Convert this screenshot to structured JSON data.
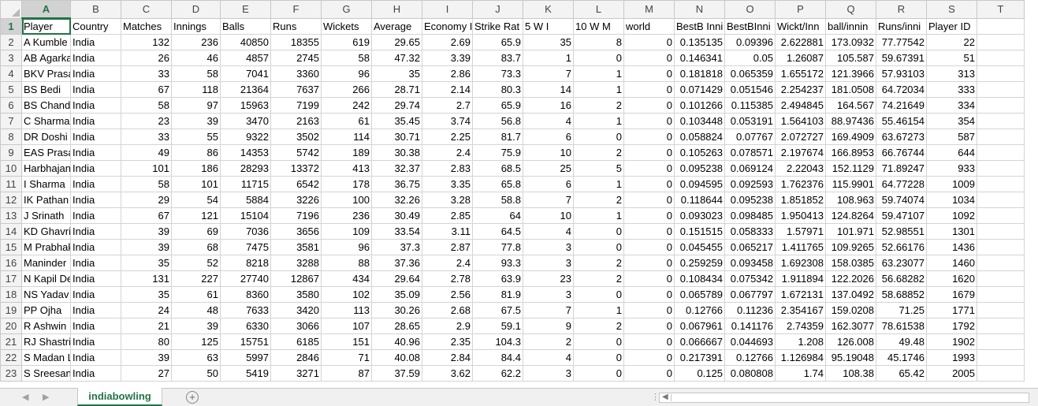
{
  "columns": [
    "A",
    "B",
    "C",
    "D",
    "E",
    "F",
    "G",
    "H",
    "I",
    "J",
    "K",
    "L",
    "M",
    "N",
    "O",
    "P",
    "Q",
    "R",
    "S",
    "T"
  ],
  "column_kinds": [
    "txt",
    "txt",
    "num",
    "num",
    "num",
    "num",
    "num",
    "num",
    "num",
    "num",
    "num",
    "num",
    "num",
    "num",
    "num",
    "num",
    "num",
    "num",
    "num",
    "txt"
  ],
  "header": [
    "Player",
    "Country",
    "Matches",
    "Innings",
    "Balls",
    "Runs",
    "Wickets",
    "Average",
    "Economy I",
    "Strike Rat",
    "5 W I",
    "10 W M",
    "world",
    "BestB Inni",
    "BestBInni",
    "Wickt/Inn",
    "ball/innin",
    "Runs/inni",
    "Player ID",
    ""
  ],
  "rows": [
    [
      "A Kumble",
      "India",
      "132",
      "236",
      "40850",
      "18355",
      "619",
      "29.65",
      "2.69",
      "65.9",
      "35",
      "8",
      "0",
      "0.135135",
      "0.09396",
      "2.622881",
      "173.0932",
      "77.77542",
      "22",
      ""
    ],
    [
      "AB Agarka",
      "India",
      "26",
      "46",
      "4857",
      "2745",
      "58",
      "47.32",
      "3.39",
      "83.7",
      "1",
      "0",
      "0",
      "0.146341",
      "0.05",
      "1.26087",
      "105.587",
      "59.67391",
      "51",
      ""
    ],
    [
      "BKV Prasa",
      "India",
      "33",
      "58",
      "7041",
      "3360",
      "96",
      "35",
      "2.86",
      "73.3",
      "7",
      "1",
      "0",
      "0.181818",
      "0.065359",
      "1.655172",
      "121.3966",
      "57.93103",
      "313",
      ""
    ],
    [
      "BS Bedi",
      "India",
      "67",
      "118",
      "21364",
      "7637",
      "266",
      "28.71",
      "2.14",
      "80.3",
      "14",
      "1",
      "0",
      "0.071429",
      "0.051546",
      "2.254237",
      "181.0508",
      "64.72034",
      "333",
      ""
    ],
    [
      "BS Chandr",
      "India",
      "58",
      "97",
      "15963",
      "7199",
      "242",
      "29.74",
      "2.7",
      "65.9",
      "16",
      "2",
      "0",
      "0.101266",
      "0.115385",
      "2.494845",
      "164.567",
      "74.21649",
      "334",
      ""
    ],
    [
      "C Sharma",
      "India",
      "23",
      "39",
      "3470",
      "2163",
      "61",
      "35.45",
      "3.74",
      "56.8",
      "4",
      "1",
      "0",
      "0.103448",
      "0.053191",
      "1.564103",
      "88.97436",
      "55.46154",
      "354",
      ""
    ],
    [
      "DR Doshi",
      "India",
      "33",
      "55",
      "9322",
      "3502",
      "114",
      "30.71",
      "2.25",
      "81.7",
      "6",
      "0",
      "0",
      "0.058824",
      "0.07767",
      "2.072727",
      "169.4909",
      "63.67273",
      "587",
      ""
    ],
    [
      "EAS Prasa",
      "India",
      "49",
      "86",
      "14353",
      "5742",
      "189",
      "30.38",
      "2.4",
      "75.9",
      "10",
      "2",
      "0",
      "0.105263",
      "0.078571",
      "2.197674",
      "166.8953",
      "66.76744",
      "644",
      ""
    ],
    [
      "Harbhajan",
      "India",
      "101",
      "186",
      "28293",
      "13372",
      "413",
      "32.37",
      "2.83",
      "68.5",
      "25",
      "5",
      "0",
      "0.095238",
      "0.069124",
      "2.22043",
      "152.1129",
      "71.89247",
      "933",
      ""
    ],
    [
      "I Sharma",
      "India",
      "58",
      "101",
      "11715",
      "6542",
      "178",
      "36.75",
      "3.35",
      "65.8",
      "6",
      "1",
      "0",
      "0.094595",
      "0.092593",
      "1.762376",
      "115.9901",
      "64.77228",
      "1009",
      ""
    ],
    [
      "IK Pathan",
      "India",
      "29",
      "54",
      "5884",
      "3226",
      "100",
      "32.26",
      "3.28",
      "58.8",
      "7",
      "2",
      "0",
      "0.118644",
      "0.095238",
      "1.851852",
      "108.963",
      "59.74074",
      "1034",
      ""
    ],
    [
      "J Srinath",
      "India",
      "67",
      "121",
      "15104",
      "7196",
      "236",
      "30.49",
      "2.85",
      "64",
      "10",
      "1",
      "0",
      "0.093023",
      "0.098485",
      "1.950413",
      "124.8264",
      "59.47107",
      "1092",
      ""
    ],
    [
      "KD Ghavri",
      "India",
      "39",
      "69",
      "7036",
      "3656",
      "109",
      "33.54",
      "3.11",
      "64.5",
      "4",
      "0",
      "0",
      "0.151515",
      "0.058333",
      "1.57971",
      "101.971",
      "52.98551",
      "1301",
      ""
    ],
    [
      "M Prabhak",
      "India",
      "39",
      "68",
      "7475",
      "3581",
      "96",
      "37.3",
      "2.87",
      "77.8",
      "3",
      "0",
      "0",
      "0.045455",
      "0.065217",
      "1.411765",
      "109.9265",
      "52.66176",
      "1436",
      ""
    ],
    [
      "Maninder",
      "India",
      "35",
      "52",
      "8218",
      "3288",
      "88",
      "37.36",
      "2.4",
      "93.3",
      "3",
      "2",
      "0",
      "0.259259",
      "0.093458",
      "1.692308",
      "158.0385",
      "63.23077",
      "1460",
      ""
    ],
    [
      "N Kapil De",
      "India",
      "131",
      "227",
      "27740",
      "12867",
      "434",
      "29.64",
      "2.78",
      "63.9",
      "23",
      "2",
      "0",
      "0.108434",
      "0.075342",
      "1.911894",
      "122.2026",
      "56.68282",
      "1620",
      ""
    ],
    [
      "NS Yadav",
      "India",
      "35",
      "61",
      "8360",
      "3580",
      "102",
      "35.09",
      "2.56",
      "81.9",
      "3",
      "0",
      "0",
      "0.065789",
      "0.067797",
      "1.672131",
      "137.0492",
      "58.68852",
      "1679",
      ""
    ],
    [
      "PP Ojha",
      "India",
      "24",
      "48",
      "7633",
      "3420",
      "113",
      "30.26",
      "2.68",
      "67.5",
      "7",
      "1",
      "0",
      "0.12766",
      "0.11236",
      "2.354167",
      "159.0208",
      "71.25",
      "1771",
      ""
    ],
    [
      "R Ashwin",
      "India",
      "21",
      "39",
      "6330",
      "3066",
      "107",
      "28.65",
      "2.9",
      "59.1",
      "9",
      "2",
      "0",
      "0.067961",
      "0.141176",
      "2.74359",
      "162.3077",
      "78.61538",
      "1792",
      ""
    ],
    [
      "RJ Shastri",
      "India",
      "80",
      "125",
      "15751",
      "6185",
      "151",
      "40.96",
      "2.35",
      "104.3",
      "2",
      "0",
      "0",
      "0.066667",
      "0.044693",
      "1.208",
      "126.008",
      "49.48",
      "1902",
      ""
    ],
    [
      "S Madan L",
      "India",
      "39",
      "63",
      "5997",
      "2846",
      "71",
      "40.08",
      "2.84",
      "84.4",
      "4",
      "0",
      "0",
      "0.217391",
      "0.12766",
      "1.126984",
      "95.19048",
      "45.1746",
      "1993",
      ""
    ],
    [
      "S Sreesant",
      "India",
      "27",
      "50",
      "5419",
      "3271",
      "87",
      "37.59",
      "3.62",
      "62.2",
      "3",
      "0",
      "0",
      "0.125",
      "0.080808",
      "1.74",
      "108.38",
      "65.42",
      "2005",
      ""
    ]
  ],
  "active_cell": "A1",
  "sheet_tab": "indiabowling",
  "add_sheet_symbol": "+",
  "nav_prev_symbol": "◀",
  "nav_next_symbol": "▶",
  "scroll_left_symbol": "◀",
  "scroll_sep_symbol": "⋮",
  "colors": {
    "accent": "#217346",
    "header_bg": "#f3f3f3",
    "gridline": "#d4d4d4"
  }
}
